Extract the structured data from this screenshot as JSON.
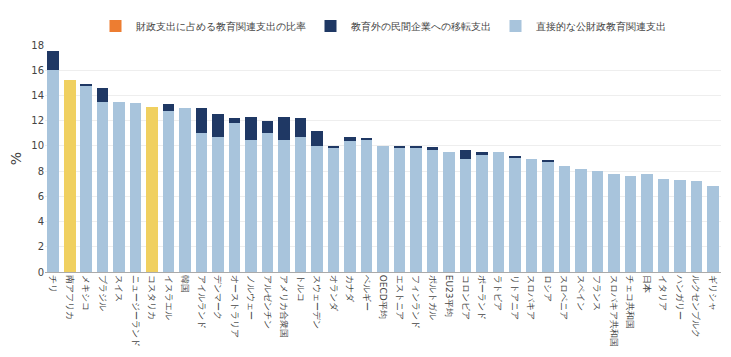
{
  "chart_data": {
    "type": "bar",
    "stacked": true,
    "grid": true,
    "legend": "top",
    "ylabel": "%",
    "categories": [
      "チリ",
      "南アフリカ",
      "メキシコ",
      "ブラジル",
      "スイス",
      "ニュージーランド",
      "コスタリカ",
      "イスラエル",
      "韓国",
      "アイルランド",
      "デンマーク",
      "オーストラリア",
      "ノルウェー",
      "アルゼンチン",
      "アメリカ合衆国",
      "トルコ",
      "スウェーデン",
      "オランダ",
      "カナダ",
      "ベルギー",
      "OECD平均",
      "エストニア",
      "フィンランド",
      "ポルトガル",
      "EU23平均",
      "コロンビア",
      "ポーランド",
      "ラトビア",
      "リトアニア",
      "スロバキア",
      "ロシア",
      "スロベニア",
      "スペイン",
      "フランス",
      "スロバキア共和国",
      "チェコ共和国",
      "日本",
      "イタリア",
      "ハンガリー",
      "ルクセンブルク",
      "ギリシャ"
    ],
    "series": [
      {
        "name": "直接的な公財政教育関連支出",
        "colors": [
          "#a8c4dc",
          "#f0d060",
          "#a8c4dc",
          "#a8c4dc",
          "#a8c4dc",
          "#a8c4dc",
          "#f0d060",
          "#a8c4dc",
          "#a8c4dc",
          "#a8c4dc",
          "#a8c4dc",
          "#a8c4dc",
          "#a8c4dc",
          "#a8c4dc",
          "#a8c4dc",
          "#a8c4dc",
          "#a8c4dc",
          "#a8c4dc",
          "#a8c4dc",
          "#a8c4dc",
          "#a8c4dc",
          "#a8c4dc",
          "#a8c4dc",
          "#a8c4dc",
          "#a8c4dc",
          "#a8c4dc",
          "#a8c4dc",
          "#a8c4dc",
          "#a8c4dc",
          "#a8c4dc",
          "#a8c4dc",
          "#a8c4dc",
          "#a8c4dc",
          "#a8c4dc",
          "#a8c4dc",
          "#a8c4dc",
          "#a8c4dc",
          "#a8c4dc",
          "#a8c4dc",
          "#a8c4dc",
          "#a8c4dc"
        ],
        "values": [
          16.0,
          15.2,
          14.8,
          13.5,
          13.5,
          13.4,
          13.1,
          12.8,
          13.0,
          11.0,
          10.7,
          11.8,
          10.5,
          11.0,
          10.5,
          10.7,
          10.0,
          9.9,
          10.4,
          10.5,
          10.0,
          9.8,
          9.8,
          9.7,
          9.5,
          9.0,
          9.3,
          9.5,
          9.1,
          9.0,
          8.8,
          8.4,
          8.2,
          8.0,
          7.8,
          7.6,
          7.8,
          7.4,
          7.3,
          7.2,
          6.8
        ]
      },
      {
        "name": "教育外の民間企業への移転支出",
        "color": "#1f3864",
        "values": [
          1.5,
          0.0,
          0.1,
          1.1,
          0.0,
          0.0,
          0.0,
          0.5,
          0.0,
          2.0,
          1.8,
          0.4,
          1.8,
          1.0,
          1.8,
          1.5,
          1.2,
          0.1,
          0.3,
          0.1,
          0.0,
          0.2,
          0.2,
          0.2,
          0.0,
          0.7,
          0.2,
          0.0,
          0.1,
          0.0,
          0.1,
          0.0,
          0.0,
          0.0,
          0.0,
          0.0,
          0.0,
          0.0,
          0.0,
          0.0,
          0.0
        ]
      },
      {
        "name": "財政支出に占める教育関連支出の比率",
        "color": "#ed7d31",
        "values": [
          null,
          null,
          null,
          null,
          null,
          null,
          null,
          null,
          null,
          null,
          null,
          null,
          null,
          null,
          null,
          null,
          null,
          null,
          null,
          null,
          null,
          null,
          null,
          null,
          null,
          null,
          null,
          null,
          null,
          null,
          null,
          null,
          null,
          null,
          null,
          null,
          null,
          null,
          null,
          null,
          null
        ]
      }
    ],
    "ylim": [
      0,
      18
    ],
    "yticks": [
      0,
      2,
      4,
      6,
      8,
      10,
      12,
      14,
      16,
      18
    ]
  }
}
